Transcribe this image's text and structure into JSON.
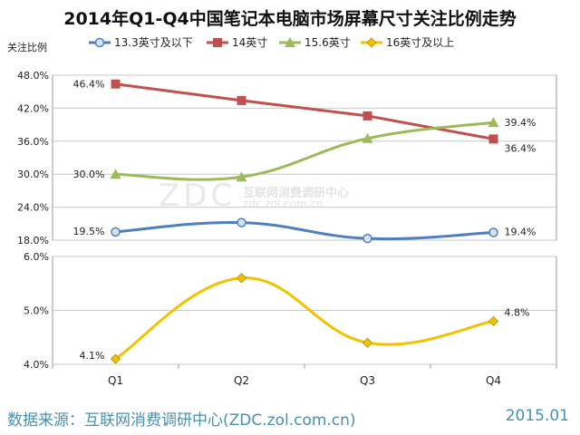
{
  "title": "2014年Q1-Q4中国笔记本电脑市场屏幕尺寸关注比例走势",
  "ylabel": "关注比例",
  "footer": {
    "source": "数据来源：互联网消费调研中心(ZDC.zol.com.cn)",
    "date": "2015.01"
  },
  "watermark": {
    "logo": "ZDC",
    "cn": "互联网消费调研中心",
    "url": "zdc.zol.com.cn"
  },
  "colors": {
    "s13": "#4f7fbe",
    "s14": "#c0504d",
    "s156": "#9bbb59",
    "s16": "#f2c200",
    "footer": "#4a8fb0"
  },
  "chart_data": [
    {
      "type": "line",
      "categories": [
        "Q1",
        "Q2",
        "Q3",
        "Q4"
      ],
      "ylim": [
        18.0,
        48.0
      ],
      "yticks": [
        "18.0%",
        "24.0%",
        "30.0%",
        "36.0%",
        "42.0%",
        "48.0%"
      ],
      "legend_position": "top",
      "series": [
        {
          "name": "13.3英寸及以下",
          "values": [
            19.5,
            21.2,
            18.3,
            19.4
          ],
          "color": "#4f7fbe",
          "marker": "circle",
          "labels": [
            "19.5%",
            "",
            "",
            "19.4%"
          ]
        },
        {
          "name": "14英寸",
          "values": [
            46.4,
            43.4,
            40.6,
            36.4
          ],
          "color": "#c0504d",
          "marker": "square",
          "labels": [
            "46.4%",
            "",
            "",
            "36.4%"
          ]
        },
        {
          "name": "15.6英寸",
          "values": [
            30.0,
            29.5,
            36.5,
            39.4
          ],
          "color": "#9bbb59",
          "marker": "triangle",
          "labels": [
            "30.0%",
            "",
            "",
            "39.4%"
          ]
        }
      ]
    },
    {
      "type": "line",
      "categories": [
        "Q1",
        "Q2",
        "Q3",
        "Q4"
      ],
      "ylim": [
        4.0,
        6.0
      ],
      "yticks": [
        "4.0%",
        "5.0%",
        "6.0%"
      ],
      "legend_position": "top",
      "series": [
        {
          "name": "16英寸及以上",
          "values": [
            4.1,
            5.6,
            4.4,
            4.8
          ],
          "color": "#f2c200",
          "marker": "diamond",
          "labels": [
            "4.1%",
            "",
            "",
            "4.8%"
          ]
        }
      ]
    }
  ]
}
